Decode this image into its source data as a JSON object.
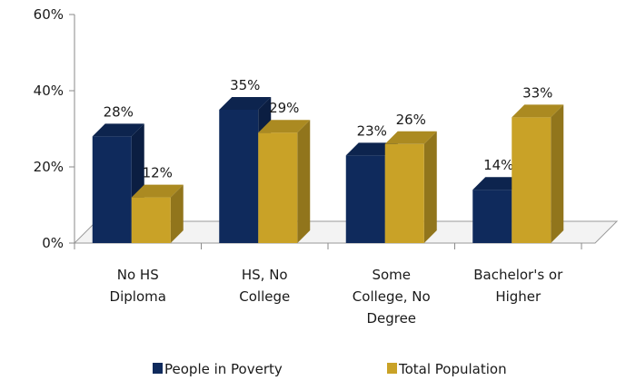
{
  "chart_data": {
    "type": "bar",
    "title": "",
    "xlabel": "",
    "ylabel": "",
    "ylim": [
      0,
      60
    ],
    "y_ticks": [
      "0%",
      "20%",
      "40%",
      "60%"
    ],
    "y_tick_values": [
      0,
      20,
      40,
      60
    ],
    "grid": false,
    "legend_position": "bottom",
    "three_d": true,
    "categories": [
      [
        "No HS",
        "Diploma"
      ],
      [
        "HS, No",
        "College"
      ],
      [
        "Some",
        "College, No",
        "Degree"
      ],
      [
        "Bachelor's or",
        "Higher"
      ]
    ],
    "series": [
      {
        "name": "People in Poverty",
        "color": "#0f2a5c",
        "values": [
          28,
          35,
          23,
          14
        ],
        "labels": [
          "28%",
          "35%",
          "23%",
          "14%"
        ]
      },
      {
        "name": "Total Population",
        "color": "#c9a227",
        "values": [
          12,
          29,
          26,
          33
        ],
        "labels": [
          "12%",
          "29%",
          "26%",
          "33%"
        ]
      }
    ]
  }
}
